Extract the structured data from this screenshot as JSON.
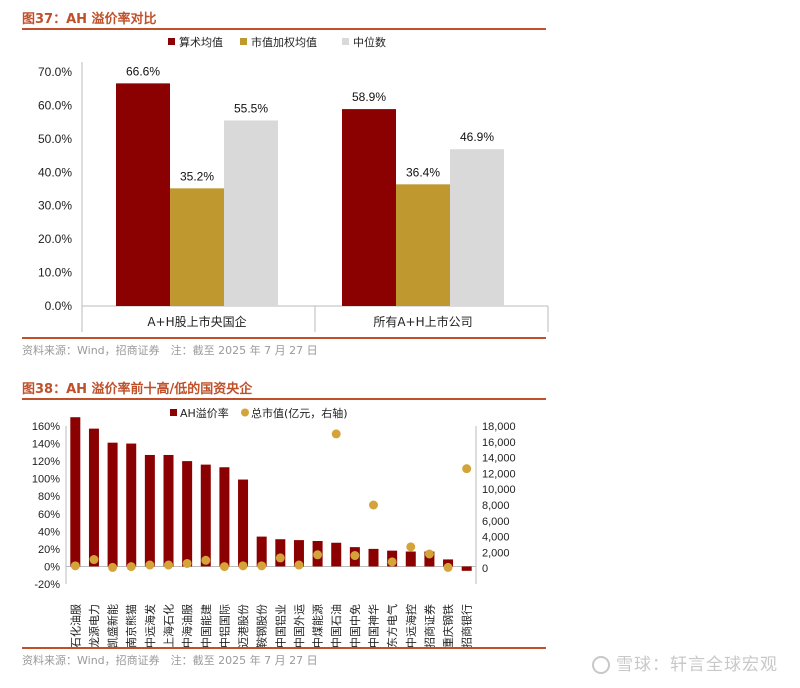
{
  "figure1": {
    "title": "图37：AH 溢价率对比",
    "source": "资料来源：Wind，招商证券　注：截至 2025 年 7 月 27 日"
  },
  "figure2": {
    "title": "图38：AH 溢价率前十高/低的国资央企",
    "source": "资料来源：Wind，招商证券　注：截至 2025 年 7 月 27 日"
  },
  "watermark": "雪球：轩言全球宏观",
  "colors": {
    "accent": "#c0502a",
    "bar_red": "#8b0000",
    "bar_gold": "#c09830",
    "bar_grey": "#d9d9d9",
    "dot_gold": "#d4a43a"
  },
  "chart_data": [
    {
      "type": "bar",
      "title": "AH 溢价率对比",
      "categories": [
        "A+H股上市央国企",
        "所有A+H上市公司"
      ],
      "series": [
        {
          "name": "算术均值",
          "values": [
            66.6,
            58.9
          ]
        },
        {
          "name": "市值加权均值",
          "values": [
            35.2,
            36.4
          ]
        },
        {
          "name": "中位数",
          "values": [
            55.5,
            46.9
          ]
        }
      ],
      "data_labels": [
        [
          "66.6%",
          "35.2%",
          "55.5%"
        ],
        [
          "58.9%",
          "36.4%",
          "46.9%"
        ]
      ],
      "yticks": [
        "0.0%",
        "10.0%",
        "20.0%",
        "30.0%",
        "40.0%",
        "50.0%",
        "60.0%",
        "70.0%"
      ],
      "ylim": [
        0,
        70
      ],
      "legend": "top"
    },
    {
      "type": "bar",
      "title": "AH 溢价率前十高/低的国资央企",
      "categories": [
        "石化油服",
        "龙源电力",
        "凯盛新能",
        "南京熊猫",
        "中远海发",
        "上海石化",
        "中海油服",
        "中国能建",
        "中铝国际",
        "迈港股份",
        "鞍钢股份",
        "中国铝业",
        "中国外运",
        "中煤能源",
        "中国石油",
        "中国中免",
        "中国神华",
        "东方电气",
        "中远海控",
        "招商证券",
        "重庆钢铁",
        "招商银行"
      ],
      "series": [
        {
          "name": "AH溢价率",
          "axis": "left",
          "kind": "bar",
          "values": [
            170,
            157,
            141,
            140,
            127,
            127,
            120,
            116,
            113,
            99,
            34,
            31,
            30,
            29,
            27,
            22,
            20,
            18,
            17,
            17,
            8,
            -5
          ]
        },
        {
          "name": "总市值(亿元，右轴)",
          "axis": "right",
          "kind": "scatter",
          "values": [
            300,
            1100,
            100,
            200,
            400,
            400,
            600,
            1000,
            200,
            300,
            300,
            1300,
            400,
            1700,
            17000,
            1600,
            8000,
            800,
            2700,
            1800,
            100,
            12600
          ]
        }
      ],
      "y_left": {
        "ylim": [
          -20,
          160
        ],
        "ticks": [
          "-20%",
          "0%",
          "20%",
          "40%",
          "60%",
          "80%",
          "100%",
          "120%",
          "140%",
          "160%"
        ]
      },
      "y_right": {
        "ylim": [
          -2000,
          18000
        ],
        "ticks": [
          "0",
          "2,000",
          "4,000",
          "6,000",
          "8,000",
          "10,000",
          "12,000",
          "14,000",
          "16,000",
          "18,000"
        ]
      },
      "legend": "top"
    }
  ]
}
